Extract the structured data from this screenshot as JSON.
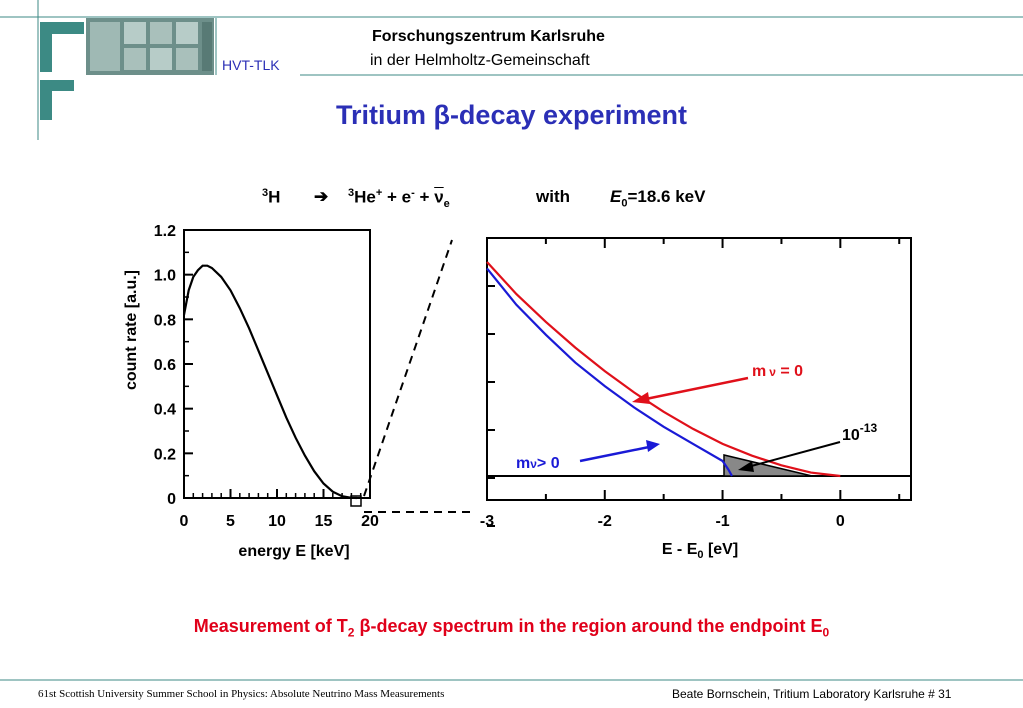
{
  "header": {
    "org_line1": "Forschungszentrum Karlsruhe",
    "org_line2": "in  der  Helmholtz-Gemeinschaft",
    "department": "HVT-TLK",
    "logo_icon": "fzk-logo-icon",
    "photo": "building-photo"
  },
  "slide": {
    "title": "Tritium β-decay experiment",
    "equation": {
      "h_sup": "3",
      "h": "H",
      "arrow": "➔",
      "he_sup": "3",
      "he": "He",
      "he_charge": "+",
      "e_part": " + e",
      "e_charge": "-",
      "plus": " + ",
      "nu": "ν",
      "nu_sub": "e",
      "with": "with",
      "e0": "E",
      "e0_sub": "0",
      "e0_value": "=18.6 keV"
    },
    "caption": {
      "pre": "Measurement of T",
      "sub": "2",
      "mid": " β-decay spectrum in the region around the endpoint E",
      "sub2": "0"
    }
  },
  "chart_data": [
    {
      "type": "line",
      "title": "",
      "xlabel": "energy E   [keV]",
      "ylabel": "count  rate  [a.u.]",
      "xlim": [
        0,
        20
      ],
      "ylim": [
        0,
        1.2
      ],
      "x_ticks": [
        "0",
        "5",
        "10",
        "15",
        "20"
      ],
      "y_ticks": [
        "0",
        "0.2",
        "0.4",
        "0.6",
        "0.8",
        "1.0",
        "1.2"
      ],
      "series": [
        {
          "color": "#000000",
          "x": [
            0,
            0.5,
            1,
            1.5,
            2,
            2.5,
            3,
            4,
            5,
            6,
            7,
            8,
            9,
            10,
            11,
            12,
            13,
            14,
            15,
            16,
            17,
            18,
            18.6
          ],
          "y": [
            0.82,
            0.93,
            0.99,
            1.02,
            1.04,
            1.04,
            1.03,
            0.99,
            0.93,
            0.85,
            0.76,
            0.66,
            0.56,
            0.46,
            0.36,
            0.27,
            0.19,
            0.12,
            0.065,
            0.028,
            0.008,
            0.001,
            0
          ]
        }
      ]
    },
    {
      "type": "line",
      "title": "",
      "xlabel": "E - E",
      "xlabel_sub": "0",
      "xlabel_unit": "  [eV]",
      "xlim": [
        -3,
        0.6
      ],
      "x_ticks": [
        "-3",
        "-2",
        "-1",
        "0"
      ],
      "annotation_1e13": "10",
      "annotation_1e13_exp": "-13",
      "series": [
        {
          "name": "m",
          "name_sub": "ν",
          "name_rest": " = 0",
          "color": "#e0101a",
          "x": [
            -3.0,
            -2.75,
            -2.5,
            -2.25,
            -2.0,
            -1.75,
            -1.5,
            -1.25,
            -1.0,
            -0.75,
            -0.5,
            -0.25,
            0.0
          ],
          "y": [
            1.0,
            0.85,
            0.72,
            0.6,
            0.49,
            0.39,
            0.3,
            0.22,
            0.15,
            0.095,
            0.05,
            0.016,
            0.0
          ]
        },
        {
          "name": "m",
          "name_sub": "ν",
          "name_rest": "> 0",
          "color": "#1a1ad6",
          "x": [
            -3.0,
            -2.75,
            -2.5,
            -2.25,
            -2.0,
            -1.75,
            -1.5,
            -1.25,
            -1.0,
            -0.95,
            -0.92
          ],
          "y": [
            0.97,
            0.8,
            0.66,
            0.53,
            0.42,
            0.32,
            0.23,
            0.15,
            0.07,
            0.03,
            0.0
          ]
        }
      ]
    }
  ]
}
